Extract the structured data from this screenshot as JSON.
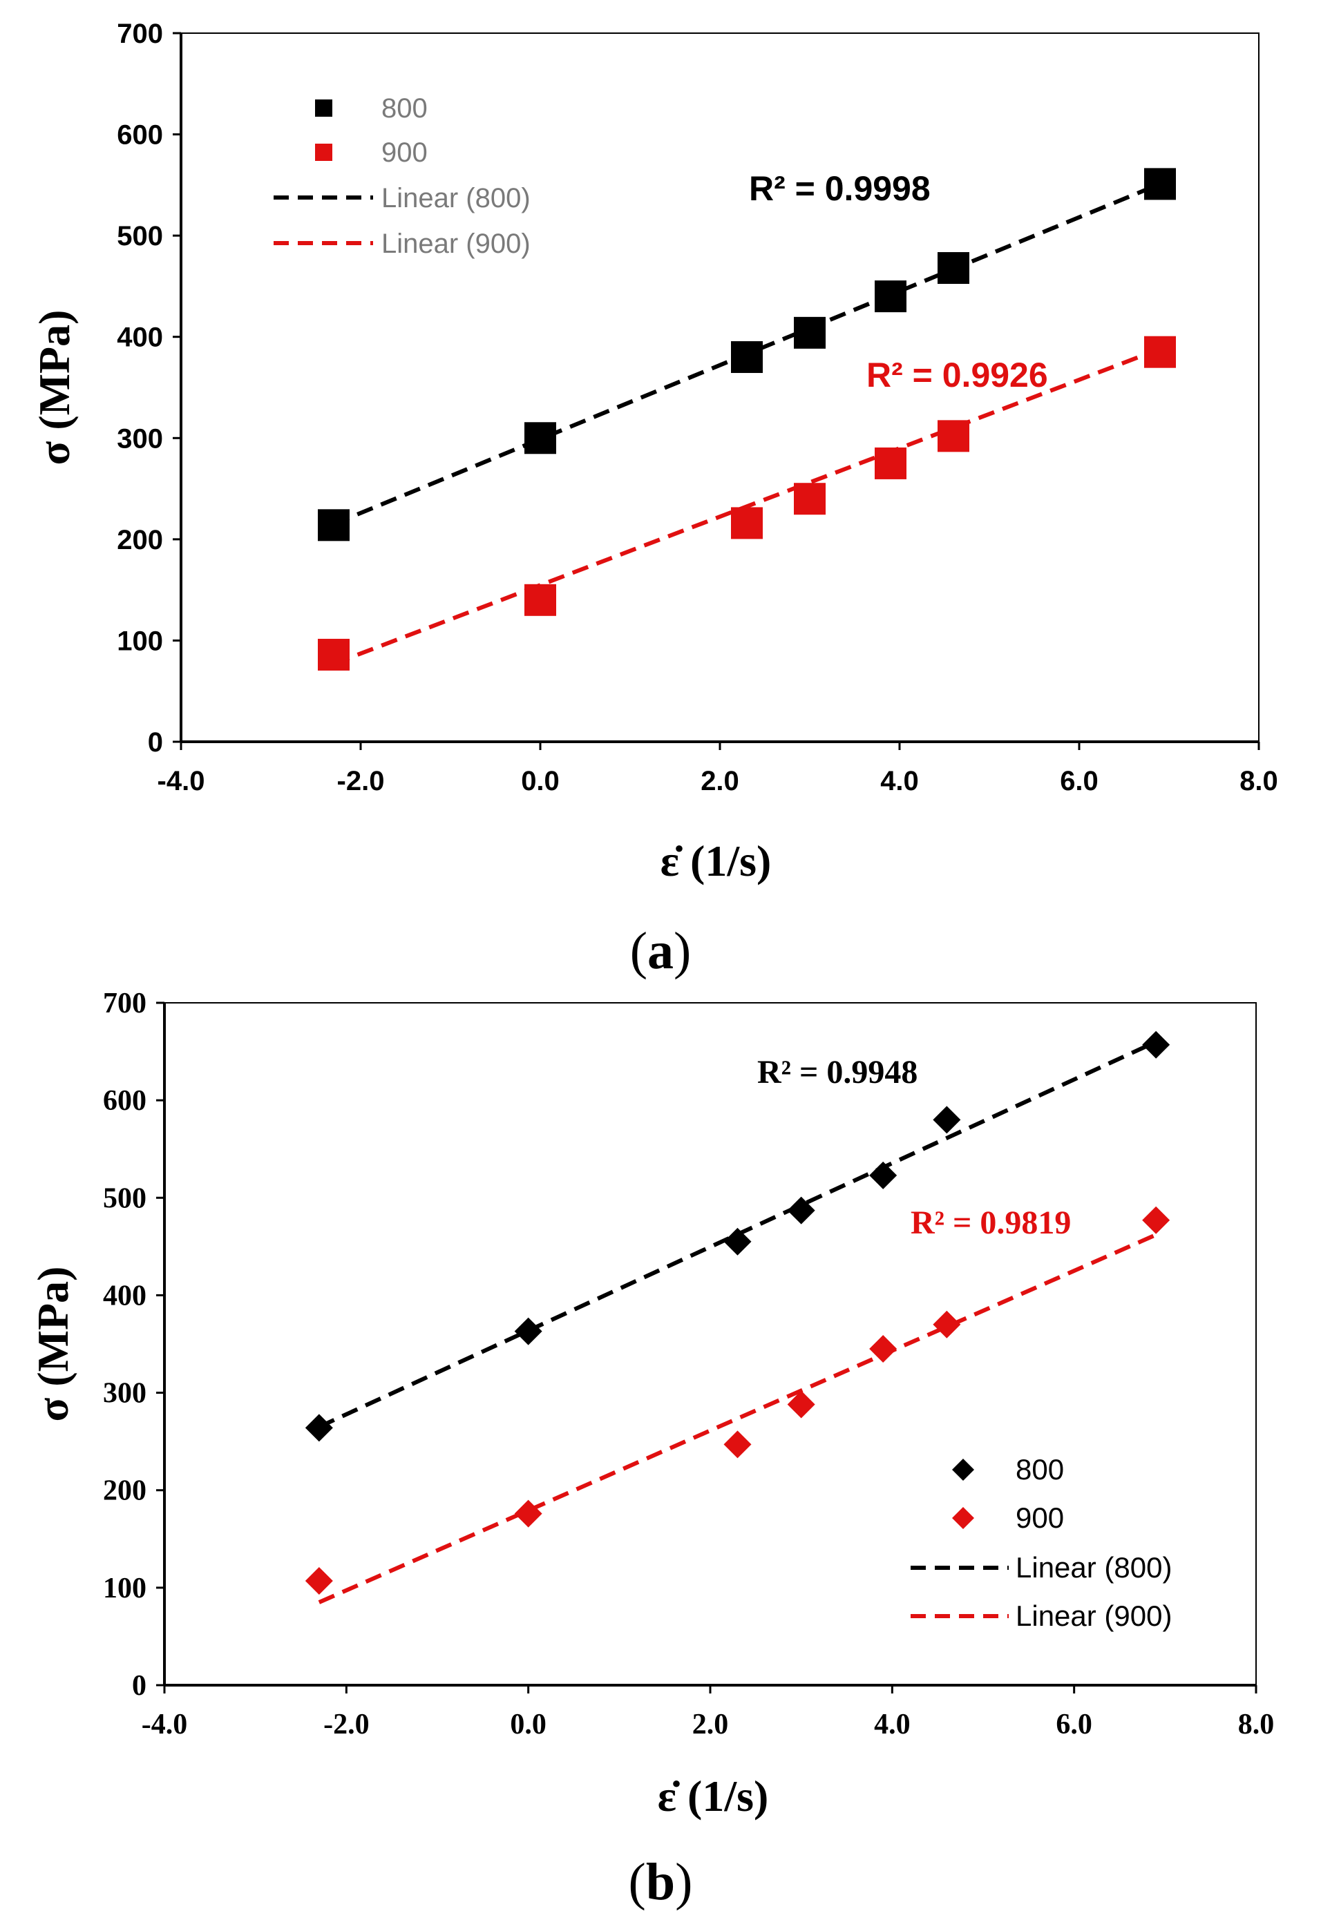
{
  "chart_data": [
    {
      "type": "scatter",
      "panel_label_open": "(",
      "panel_label": "a",
      "panel_label_close": ")",
      "xlabel": "ε̇ (1/s)",
      "ylabel": "σ (MPa)",
      "xlim": [
        -4.0,
        8.0
      ],
      "ylim": [
        0,
        700
      ],
      "xticks": [
        -4.0,
        -2.0,
        0.0,
        2.0,
        4.0,
        6.0,
        8.0
      ],
      "yticks": [
        0,
        100,
        200,
        300,
        400,
        500,
        600,
        700
      ],
      "xtick_labels": [
        "-4.0",
        "-2.0",
        "0.0",
        "2.0",
        "4.0",
        "6.0",
        "8.0"
      ],
      "ytick_labels": [
        "0",
        "100",
        "200",
        "300",
        "400",
        "500",
        "600",
        "700"
      ],
      "marker": "square",
      "legend_position": "top-left",
      "series": [
        {
          "name": "800",
          "color": "#000000",
          "x": [
            -2.3,
            0.0,
            2.3,
            3.0,
            3.9,
            4.6,
            6.9
          ],
          "y": [
            214,
            300,
            380,
            404,
            440,
            468,
            551
          ],
          "fit_name": "Linear (800)",
          "fit_x": [
            -2.3,
            6.9
          ],
          "fit_y": [
            215,
            551
          ],
          "r2": "R² = 0.9998"
        },
        {
          "name": "900",
          "color": "#e01010",
          "x": [
            -2.3,
            0.0,
            2.3,
            3.0,
            3.9,
            4.6,
            6.9
          ],
          "y": [
            86,
            140,
            216,
            240,
            275,
            302,
            385
          ],
          "fit_name": "Linear (900)",
          "fit_x": [
            -2.3,
            6.9
          ],
          "fit_y": [
            77,
            388
          ],
          "r2": "R² = 0.9926"
        }
      ]
    },
    {
      "type": "scatter",
      "panel_label_open": "(",
      "panel_label": "b",
      "panel_label_close": ")",
      "xlabel": "ε̇ (1/s)",
      "ylabel": "σ (MPa)",
      "xlim": [
        -4.0,
        8.0
      ],
      "ylim": [
        0,
        700
      ],
      "xticks": [
        -4.0,
        -2.0,
        0.0,
        2.0,
        4.0,
        6.0,
        8.0
      ],
      "yticks": [
        0,
        100,
        200,
        300,
        400,
        500,
        600,
        700
      ],
      "xtick_labels": [
        "-4.0",
        "-2.0",
        "0.0",
        "2.0",
        "4.0",
        "6.0",
        "8.0"
      ],
      "ytick_labels": [
        "0",
        "100",
        "200",
        "300",
        "400",
        "500",
        "600",
        "700"
      ],
      "marker": "diamond",
      "legend_position": "bottom-right",
      "series": [
        {
          "name": "800",
          "color": "#000000",
          "x": [
            -2.3,
            0.0,
            2.3,
            3.0,
            3.9,
            4.6,
            6.9
          ],
          "y": [
            264,
            363,
            455,
            487,
            523,
            580,
            657
          ],
          "fit_name": "Linear (800)",
          "fit_x": [
            -2.3,
            6.9
          ],
          "fit_y": [
            265,
            660
          ],
          "r2": "R² = 0.9948"
        },
        {
          "name": "900",
          "color": "#e01010",
          "x": [
            -2.3,
            0.0,
            2.3,
            3.0,
            3.9,
            4.6,
            6.9
          ],
          "y": [
            107,
            176,
            247,
            288,
            345,
            370,
            477
          ],
          "fit_name": "Linear (900)",
          "fit_x": [
            -2.3,
            6.9
          ],
          "fit_y": [
            85,
            462
          ],
          "r2": "R² = 0.9819"
        }
      ]
    }
  ]
}
